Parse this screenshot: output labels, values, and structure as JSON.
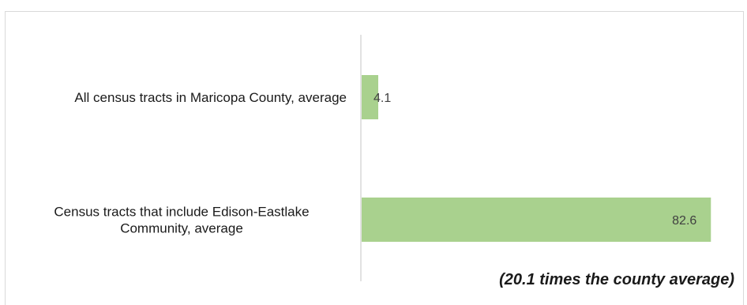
{
  "chart_data": {
    "type": "bar",
    "orientation": "horizontal",
    "categories": [
      [
        "All census tracts in Maricopa County, average"
      ],
      [
        "Census tracts that include Edison-Eastlake",
        "Community, average"
      ]
    ],
    "values": [
      4.1,
      82.6
    ],
    "value_labels": [
      "4.1",
      "82.6"
    ],
    "annotation": "(20.1 times the county average)",
    "grid": false,
    "legend": "none",
    "xlim": [
      0,
      90
    ]
  },
  "colors": {
    "bar": "#a9d18e",
    "axis": "#d9d9d9"
  }
}
